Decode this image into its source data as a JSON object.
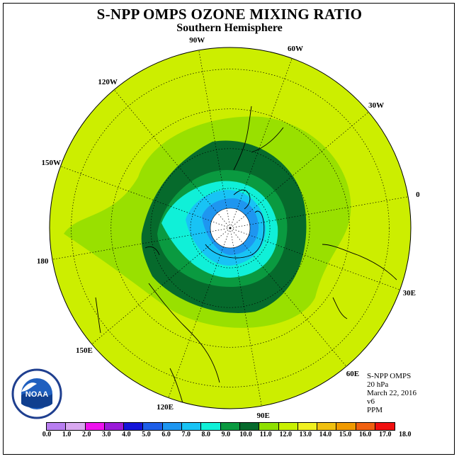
{
  "title": "S-NPP OMPS OZONE MIXING RATIO",
  "subtitle": "Southern Hemisphere",
  "longitude_labels": [
    "90W",
    "60W",
    "30W",
    "0",
    "30E",
    "60E",
    "90E",
    "120E",
    "150E",
    "180",
    "150W",
    "120W"
  ],
  "info": {
    "instrument": "S-NPP OMPS",
    "level": "20 hPa",
    "date": "March 22, 2016",
    "version": "v6",
    "units": "PPM"
  },
  "logo_text": "NOAA",
  "colorbar": {
    "ticks": [
      "0.0",
      "1.0",
      "2.0",
      "3.0",
      "4.0",
      "5.0",
      "6.0",
      "7.0",
      "8.0",
      "9.0",
      "10.0",
      "11.0",
      "12.0",
      "13.0",
      "14.0",
      "15.0",
      "16.0",
      "17.0",
      "18.0"
    ],
    "colors": [
      "#b87ef0",
      "#d9a8f0",
      "#ee12ee",
      "#9a1ad8",
      "#1414d8",
      "#1e5ee8",
      "#1e96f0",
      "#18c3f5",
      "#10f0d8",
      "#0a9a40",
      "#066a2c",
      "#8ee000",
      "#c8f000",
      "#f0f020",
      "#f0c010",
      "#f09a00",
      "#f06010",
      "#f01010",
      "#6a4020"
    ]
  },
  "map": {
    "background_color": "#ccee00",
    "ozone_levels": [
      {
        "range": "10.0-11.0",
        "color": "#99e000"
      },
      {
        "range": "9.0-10.0",
        "color": "#066a2c"
      },
      {
        "range": "8.0-9.0",
        "color": "#0a9a40"
      },
      {
        "range": "7.0-8.0",
        "color": "#10f0d8"
      },
      {
        "range": "6.0-7.0",
        "color": "#18c3f5"
      },
      {
        "range": "5.0-6.0",
        "color": "#1e96f0"
      }
    ]
  }
}
